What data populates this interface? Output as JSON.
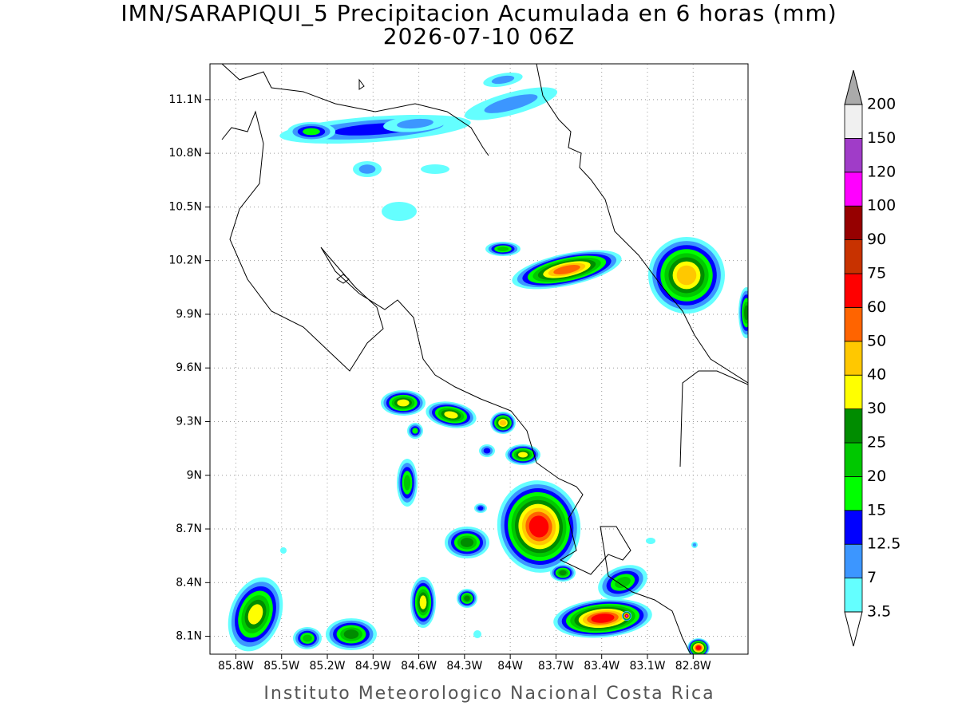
{
  "header": {
    "title": "IMN/SARAPIQUI_5 Precipitacion Acumulada en 6 horas (mm)",
    "subtitle": "2026-07-10 06Z"
  },
  "map": {
    "xlim": [
      -85.97,
      -82.44
    ],
    "ylim": [
      8.0,
      11.3
    ],
    "grid": true,
    "xticks": [
      {
        "value": -85.8,
        "label": "85.8W"
      },
      {
        "value": -85.5,
        "label": "85.5W"
      },
      {
        "value": -85.2,
        "label": "85.2W"
      },
      {
        "value": -84.9,
        "label": "84.9W"
      },
      {
        "value": -84.6,
        "label": "84.6W"
      },
      {
        "value": -84.3,
        "label": "84.3W"
      },
      {
        "value": -84,
        "label": "84W"
      },
      {
        "value": -83.7,
        "label": "83.7W"
      },
      {
        "value": -83.4,
        "label": "83.4W"
      },
      {
        "value": -83.1,
        "label": "83.1W"
      },
      {
        "value": -82.8,
        "label": "82.8W"
      }
    ],
    "yticks": [
      {
        "value": 8.1,
        "label": "8.1N"
      },
      {
        "value": 8.4,
        "label": "8.4N"
      },
      {
        "value": 8.7,
        "label": "8.7N"
      },
      {
        "value": 9,
        "label": "9N"
      },
      {
        "value": 9.3,
        "label": "9.3N"
      },
      {
        "value": 9.6,
        "label": "9.6N"
      },
      {
        "value": 9.9,
        "label": "9.9N"
      },
      {
        "value": 10.2,
        "label": "10.2N"
      },
      {
        "value": 10.5,
        "label": "10.5N"
      },
      {
        "value": 10.8,
        "label": "10.8N"
      },
      {
        "value": 11.1,
        "label": "11.1N"
      }
    ]
  },
  "colorbar": {
    "levels": [
      3.5,
      7,
      12.5,
      15,
      20,
      25,
      30,
      40,
      50,
      60,
      75,
      90,
      100,
      120,
      150,
      200
    ],
    "colors": [
      "#64ffff",
      "#3c96ff",
      "#0000ff",
      "#00ff00",
      "#00c800",
      "#008c00",
      "#ffff00",
      "#ffc800",
      "#ff6400",
      "#ff0000",
      "#c83200",
      "#960000",
      "#ff00ff",
      "#a03cc8",
      "#f0f0f0"
    ],
    "under_color": "#ffffff",
    "over_color": "#aaaaaa"
  },
  "footer": "Instituto Meteorologico Nacional Costa Rica"
}
